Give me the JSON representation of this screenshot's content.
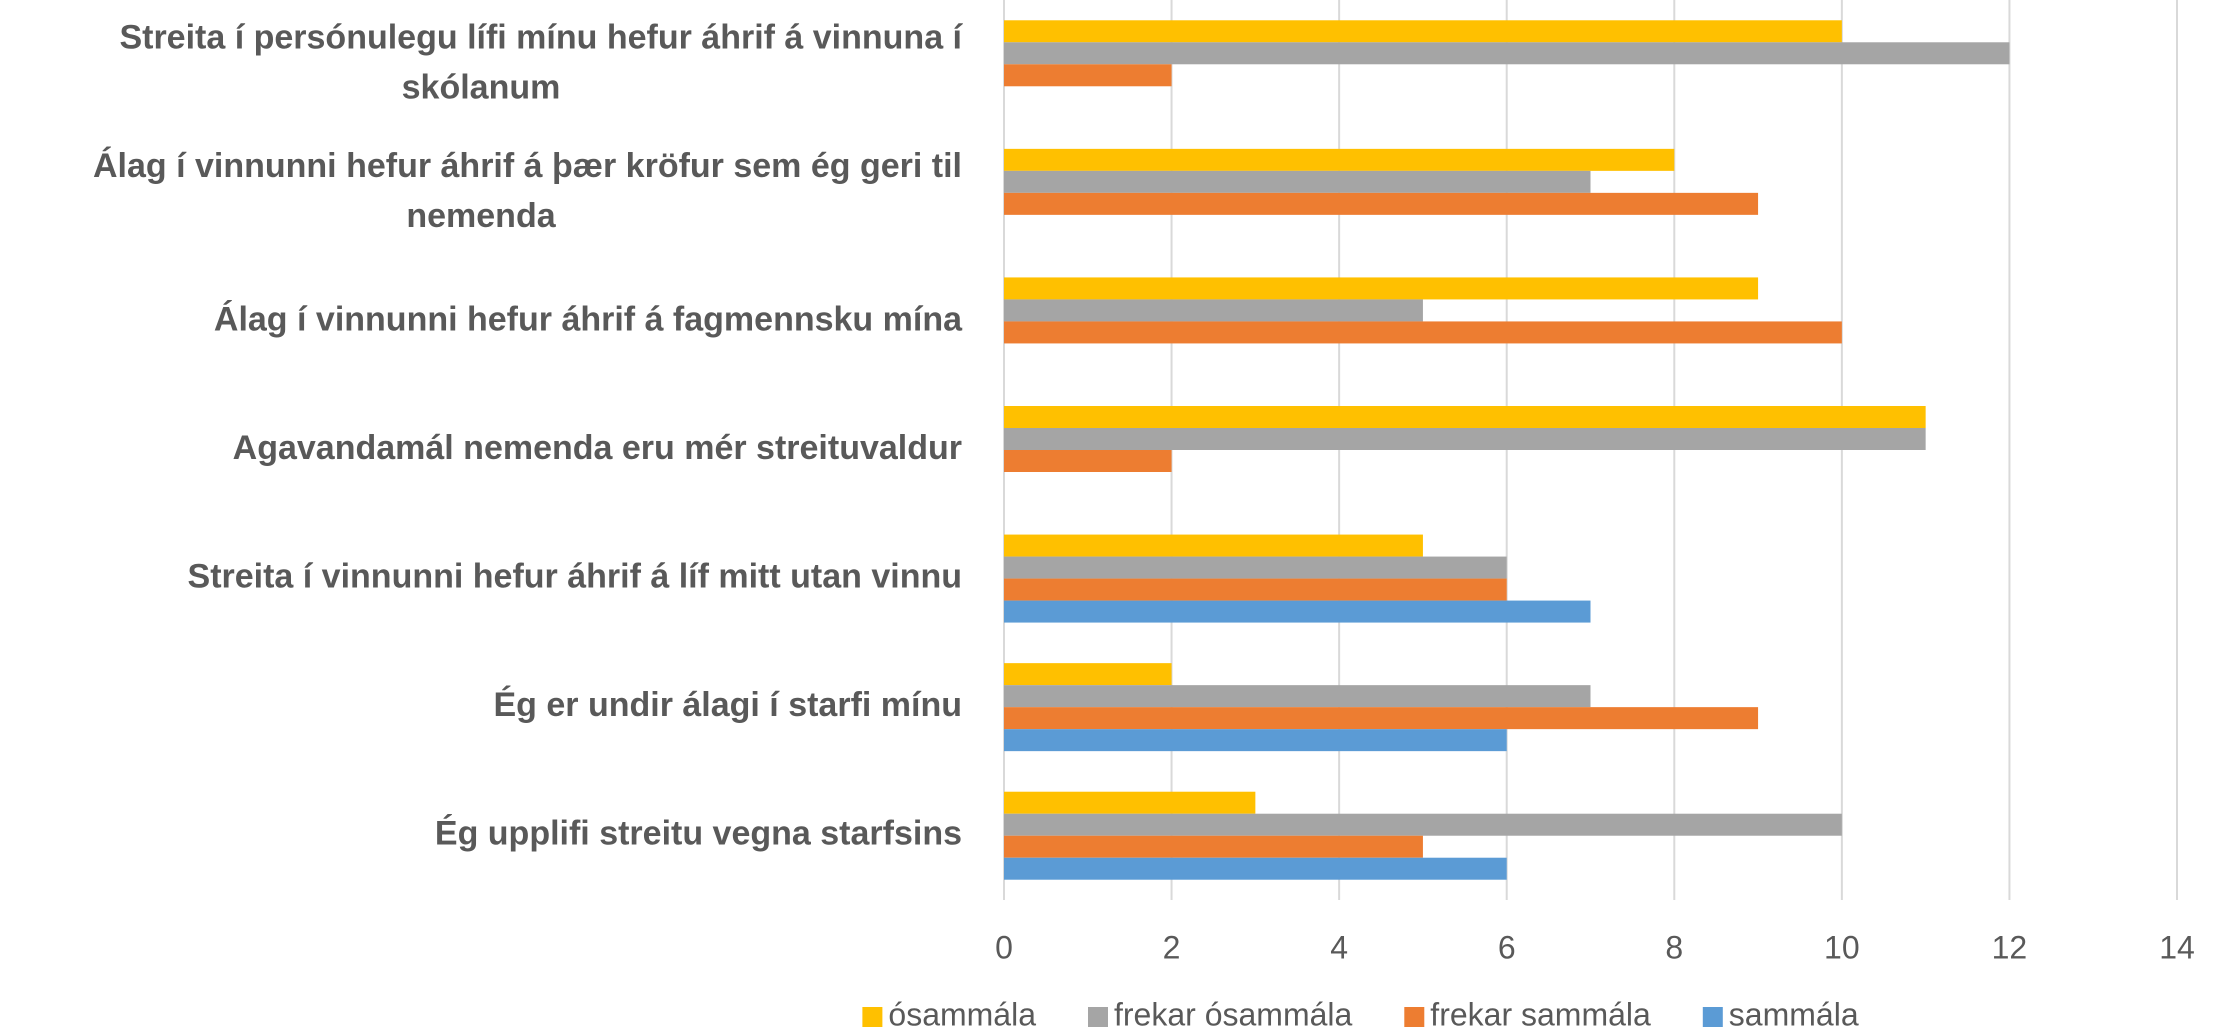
{
  "chart_data": {
    "type": "barh",
    "categories": [
      "Streita í persónulegu lífi mínu hefur áhrif á vinnuna í skólanum",
      "Álag í vinnunni hefur áhrif á þær kröfur sem ég geri til nemenda",
      "Álag í vinnunni hefur áhrif á fagmennsku mína",
      "Agavandamál nemenda eru mér streituvaldur",
      "Streita í vinnunni hefur áhrif á líf mitt utan vinnu",
      "Ég er undir álagi í starfi mínu",
      "Ég upplifi streitu vegna starfsins"
    ],
    "series": [
      {
        "name": "ósammála",
        "color": "#ffc000",
        "values": [
          10,
          8,
          9,
          11,
          5,
          2,
          3
        ]
      },
      {
        "name": "frekar ósammála",
        "color": "#a5a5a5",
        "values": [
          12,
          7,
          5,
          11,
          6,
          7,
          10
        ]
      },
      {
        "name": "frekar sammála",
        "color": "#ed7d31",
        "values": [
          2,
          9,
          10,
          2,
          6,
          9,
          5
        ]
      },
      {
        "name": "sammála",
        "color": "#5b9bd5",
        "values": [
          0,
          0,
          0,
          0,
          7,
          6,
          6
        ]
      }
    ],
    "xlim": [
      0,
      14
    ],
    "xticks": [
      0,
      2,
      4,
      6,
      8,
      10,
      12,
      14
    ],
    "grid": true,
    "legend": "bottom"
  }
}
